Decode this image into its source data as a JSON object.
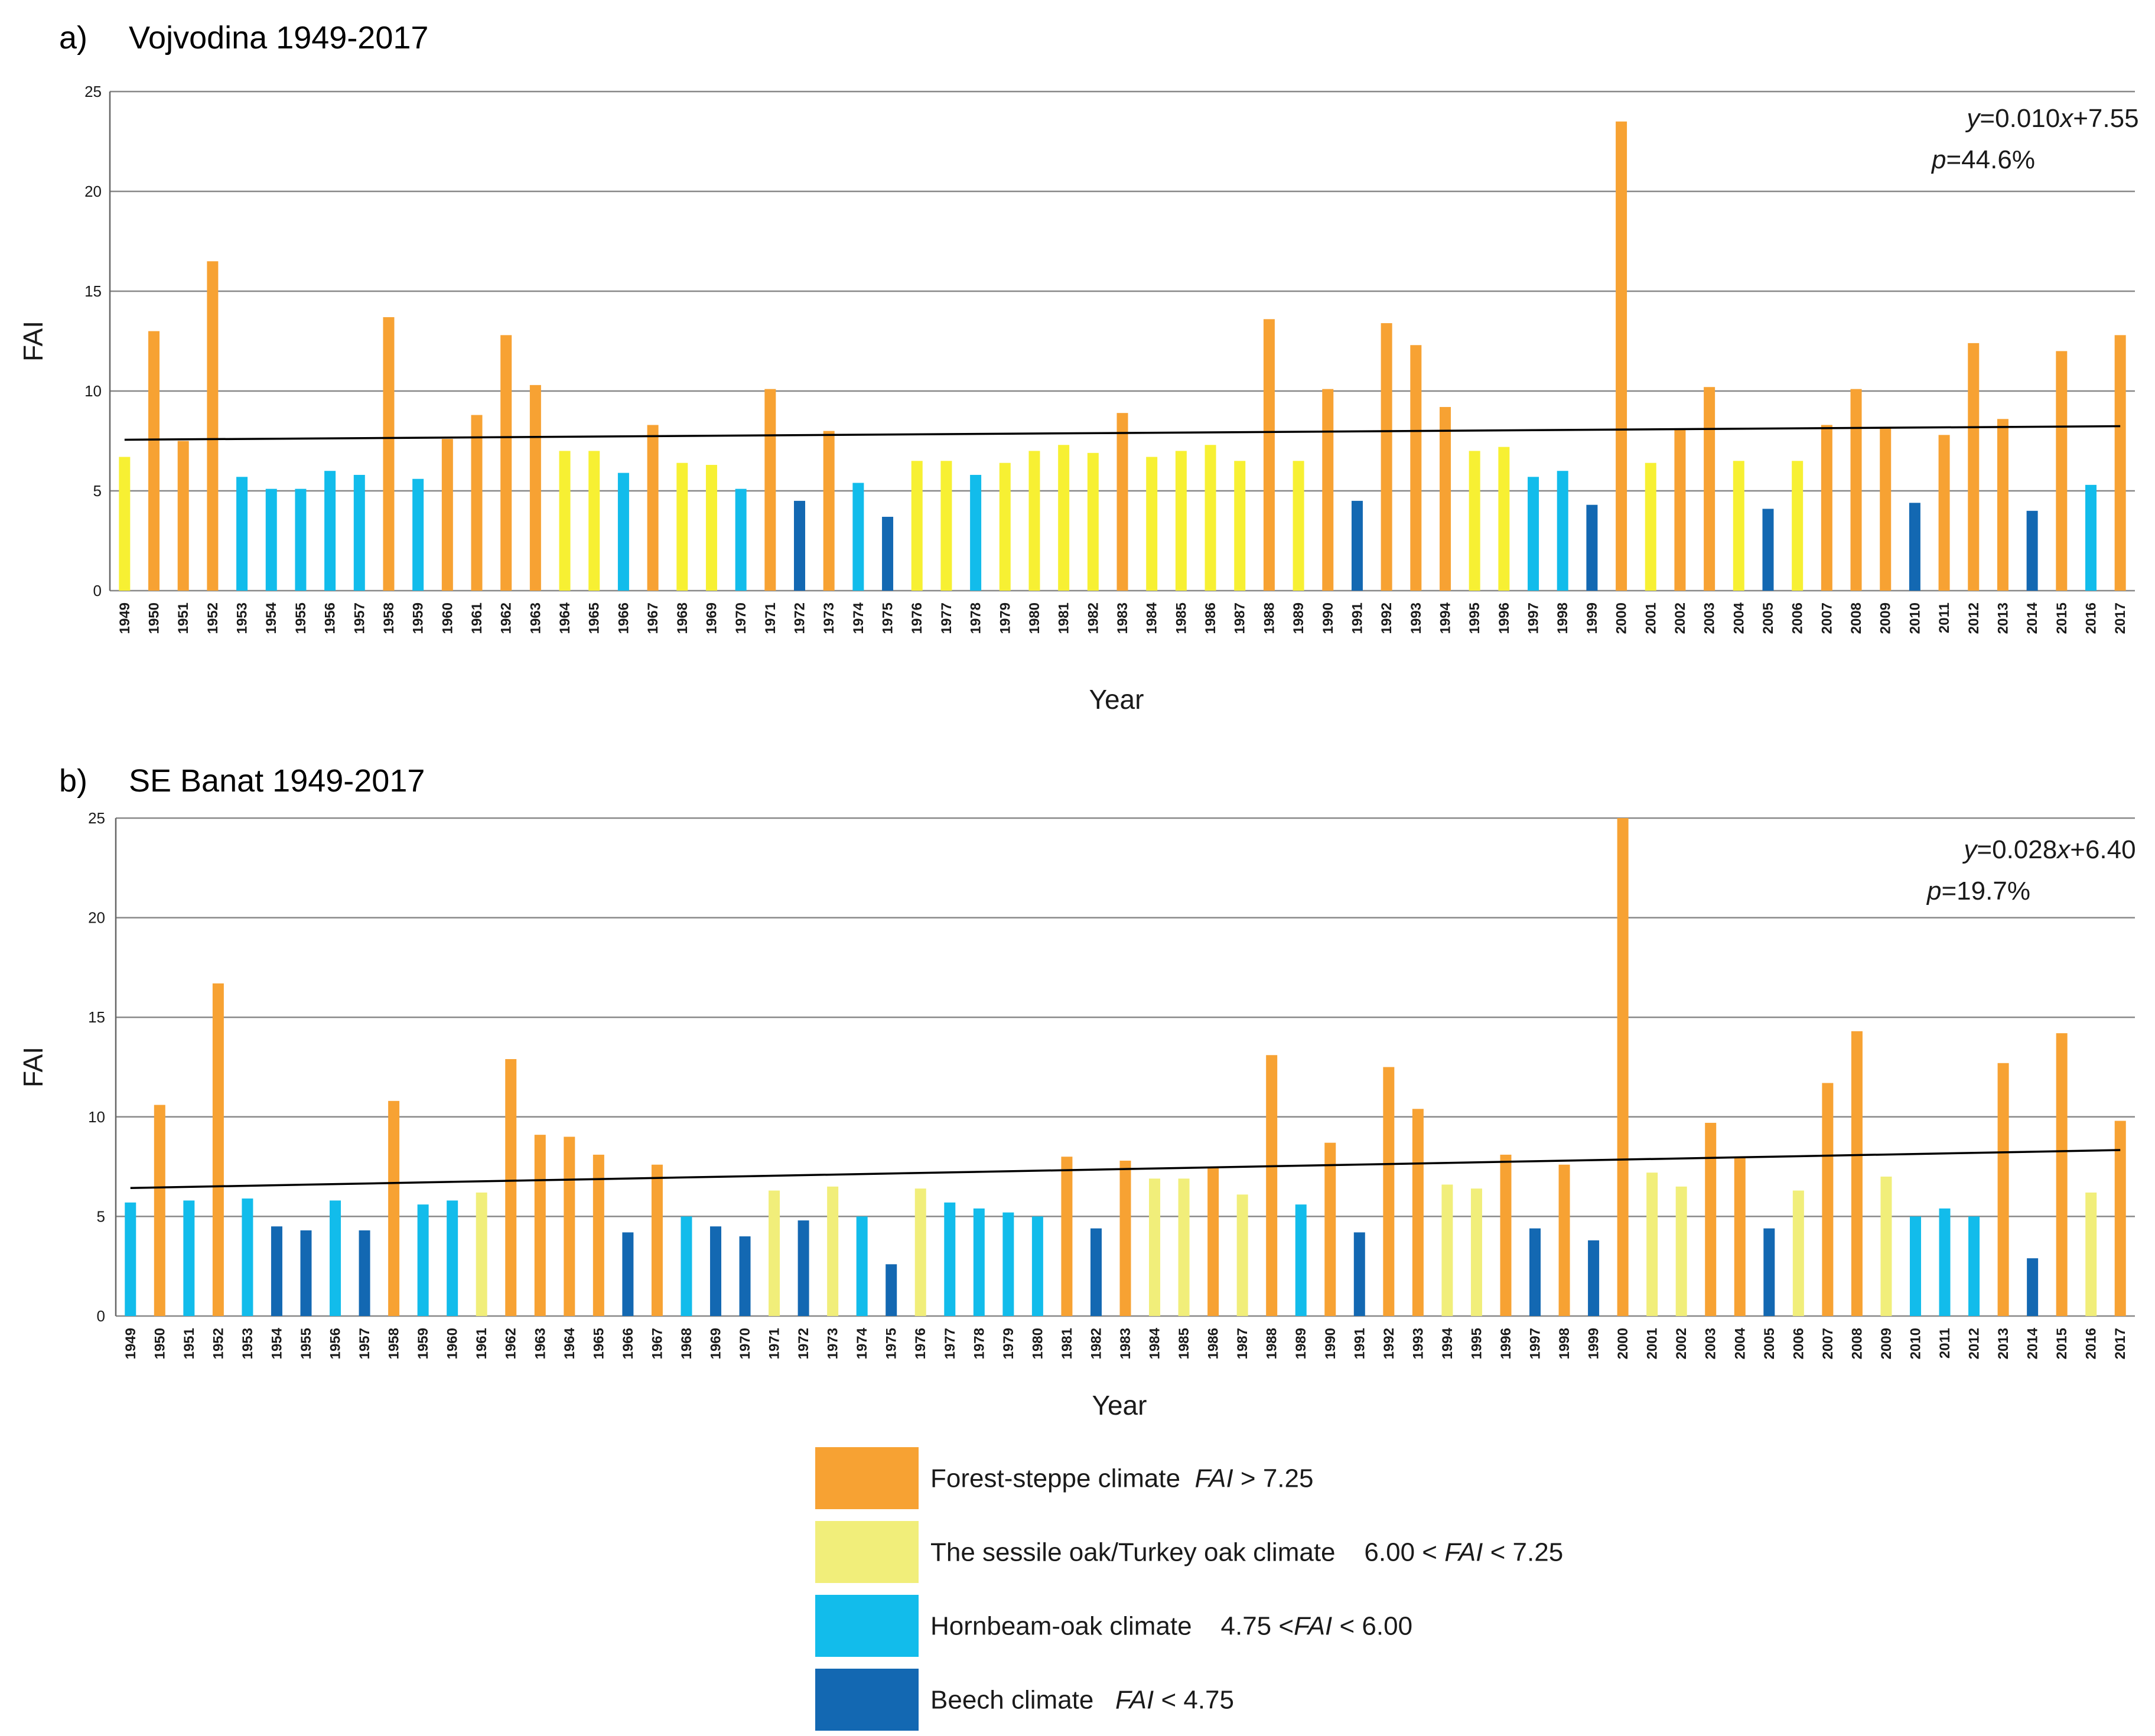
{
  "colors": {
    "forest_steppe": "#F7A233",
    "sessile_oak_a": "#F7F033",
    "sessile_oak_b": "#F1EE7A",
    "hornbeam_oak": "#12BCEB",
    "beech": "#1368B2",
    "grid": "#888888",
    "trend": "#000000"
  },
  "legend": [
    {
      "key": "forest_steppe",
      "text_html": "Forest-steppe climate&nbsp;&nbsp;<tspan font-style='italic'>FAI</tspan> &gt; 7.25",
      "text": "Forest-steppe climate FAI > 7.25"
    },
    {
      "key": "sessile_oak_b",
      "text_html": "The sessile oak/Turkey oak climate&nbsp;&nbsp;&nbsp;&nbsp;6.00 &lt; <tspan font-style='italic'>FAI</tspan> &lt; 7.25",
      "text": "The sessile oak/Turkey oak climate 6.00 < FAI < 7.25"
    },
    {
      "key": "hornbeam_oak",
      "text_html": "Hornbeam-oak climate&nbsp;&nbsp;&nbsp;&nbsp;4.75 &lt;<tspan font-style='italic'>FAI</tspan> &lt; 6.00",
      "text": "Hornbeam-oak climate 4.75 <FAI < 6.00"
    },
    {
      "key": "beech",
      "text_html": "Beech climate&nbsp;&nbsp;&nbsp;<tspan font-style='italic'>FAI</tspan> &lt; 4.75",
      "text": "Beech climate FAI < 4.75"
    }
  ],
  "chart_data": [
    {
      "type": "bar",
      "panel_label": "a)",
      "title": "Vojvodina 1949-2017",
      "xlabel": "Year",
      "ylabel": "FAI",
      "ylim": [
        0,
        25
      ],
      "yticks": [
        0,
        5,
        10,
        15,
        20,
        25
      ],
      "grid": true,
      "equation": "y=0.010x+7.55",
      "p_value": "p=44.6%",
      "trend": {
        "slope": 0.01,
        "intercept": 7.55
      },
      "categories": [
        "1949",
        "1950",
        "1951",
        "1952",
        "1953",
        "1954",
        "1955",
        "1956",
        "1957",
        "1958",
        "1959",
        "1960",
        "1961",
        "1962",
        "1963",
        "1964",
        "1965",
        "1966",
        "1967",
        "1968",
        "1969",
        "1970",
        "1971",
        "1972",
        "1973",
        "1974",
        "1975",
        "1976",
        "1977",
        "1978",
        "1979",
        "1980",
        "1981",
        "1982",
        "1983",
        "1984",
        "1985",
        "1986",
        "1987",
        "1988",
        "1989",
        "1990",
        "1991",
        "1992",
        "1993",
        "1994",
        "1995",
        "1996",
        "1997",
        "1998",
        "1999",
        "2000",
        "2001",
        "2002",
        "2003",
        "2004",
        "2005",
        "2006",
        "2007",
        "2008",
        "2009",
        "2010",
        "2011",
        "2012",
        "2013",
        "2014",
        "2015",
        "2016",
        "2017"
      ],
      "values": [
        6.7,
        13.0,
        7.5,
        16.5,
        5.7,
        5.1,
        5.1,
        6.0,
        5.8,
        13.7,
        5.6,
        7.6,
        8.8,
        12.8,
        10.3,
        7.0,
        7.0,
        5.9,
        8.3,
        6.4,
        6.3,
        5.1,
        10.1,
        4.5,
        8.0,
        5.4,
        3.7,
        6.5,
        6.5,
        5.8,
        6.4,
        7.0,
        7.3,
        6.9,
        8.9,
        6.7,
        7.0,
        7.3,
        6.5,
        13.6,
        6.5,
        10.1,
        4.5,
        13.4,
        12.3,
        9.2,
        7.0,
        7.2,
        5.7,
        6.0,
        4.3,
        23.5,
        6.4,
        8.1,
        10.2,
        6.5,
        4.1,
        6.5,
        8.3,
        10.1,
        8.2,
        4.4,
        7.8,
        12.4,
        8.6,
        4.0,
        12.0,
        5.3,
        12.8
      ],
      "classes": [
        "sessile_oak_a",
        "forest_steppe",
        "forest_steppe",
        "forest_steppe",
        "hornbeam_oak",
        "hornbeam_oak",
        "hornbeam_oak",
        "hornbeam_oak",
        "hornbeam_oak",
        "forest_steppe",
        "hornbeam_oak",
        "forest_steppe",
        "forest_steppe",
        "forest_steppe",
        "forest_steppe",
        "sessile_oak_a",
        "sessile_oak_a",
        "hornbeam_oak",
        "forest_steppe",
        "sessile_oak_a",
        "sessile_oak_a",
        "hornbeam_oak",
        "forest_steppe",
        "beech",
        "forest_steppe",
        "hornbeam_oak",
        "beech",
        "sessile_oak_a",
        "sessile_oak_a",
        "hornbeam_oak",
        "sessile_oak_a",
        "sessile_oak_a",
        "sessile_oak_a",
        "sessile_oak_a",
        "forest_steppe",
        "sessile_oak_a",
        "sessile_oak_a",
        "sessile_oak_a",
        "sessile_oak_a",
        "forest_steppe",
        "sessile_oak_a",
        "forest_steppe",
        "beech",
        "forest_steppe",
        "forest_steppe",
        "forest_steppe",
        "sessile_oak_a",
        "sessile_oak_a",
        "hornbeam_oak",
        "hornbeam_oak",
        "beech",
        "forest_steppe",
        "sessile_oak_a",
        "forest_steppe",
        "forest_steppe",
        "sessile_oak_a",
        "beech",
        "sessile_oak_a",
        "forest_steppe",
        "forest_steppe",
        "forest_steppe",
        "beech",
        "forest_steppe",
        "forest_steppe",
        "forest_steppe",
        "beech",
        "forest_steppe",
        "hornbeam_oak",
        "forest_steppe"
      ]
    },
    {
      "type": "bar",
      "panel_label": "b)",
      "title": "SE Banat 1949-2017",
      "xlabel": "Year",
      "ylabel": "FAI",
      "ylim": [
        0,
        25
      ],
      "yticks": [
        0,
        5,
        10,
        15,
        20,
        25
      ],
      "grid": true,
      "equation": "y=0.028x+6.40",
      "p_value": "p=19.7%",
      "trend": {
        "slope": 0.028,
        "intercept": 6.4
      },
      "categories": [
        "1949",
        "1950",
        "1951",
        "1952",
        "1953",
        "1954",
        "1955",
        "1956",
        "1957",
        "1958",
        "1959",
        "1960",
        "1961",
        "1962",
        "1963",
        "1964",
        "1965",
        "1966",
        "1967",
        "1968",
        "1969",
        "1970",
        "1971",
        "1972",
        "1973",
        "1974",
        "1975",
        "1976",
        "1977",
        "1978",
        "1979",
        "1980",
        "1981",
        "1982",
        "1983",
        "1984",
        "1985",
        "1986",
        "1987",
        "1988",
        "1989",
        "1990",
        "1991",
        "1992",
        "1993",
        "1994",
        "1995",
        "1996",
        "1997",
        "1998",
        "1999",
        "2000",
        "2001",
        "2002",
        "2003",
        "2004",
        "2005",
        "2006",
        "2007",
        "2008",
        "2009",
        "2010",
        "2011",
        "2012",
        "2013",
        "2014",
        "2015",
        "2016",
        "2017"
      ],
      "values": [
        5.7,
        10.6,
        5.8,
        16.7,
        5.9,
        4.5,
        4.3,
        5.8,
        4.3,
        10.8,
        5.6,
        5.8,
        6.2,
        12.9,
        9.1,
        9.0,
        8.1,
        4.2,
        7.6,
        5.0,
        4.5,
        4.0,
        6.3,
        4.8,
        6.5,
        5.0,
        2.6,
        6.4,
        5.7,
        5.4,
        5.2,
        5.0,
        8.0,
        4.4,
        7.8,
        6.9,
        6.9,
        7.5,
        6.1,
        13.1,
        5.6,
        8.7,
        4.2,
        12.5,
        10.4,
        6.6,
        6.4,
        8.1,
        4.4,
        7.6,
        3.8,
        25.0,
        7.2,
        6.5,
        9.7,
        8.0,
        4.4,
        6.3,
        11.7,
        14.3,
        7.0,
        5.0,
        5.4,
        5.0,
        12.7,
        2.9,
        14.2,
        6.2,
        9.8
      ],
      "classes": [
        "hornbeam_oak",
        "forest_steppe",
        "hornbeam_oak",
        "forest_steppe",
        "hornbeam_oak",
        "beech",
        "beech",
        "hornbeam_oak",
        "beech",
        "forest_steppe",
        "hornbeam_oak",
        "hornbeam_oak",
        "sessile_oak_b",
        "forest_steppe",
        "forest_steppe",
        "forest_steppe",
        "forest_steppe",
        "beech",
        "forest_steppe",
        "hornbeam_oak",
        "beech",
        "beech",
        "sessile_oak_b",
        "beech",
        "sessile_oak_b",
        "hornbeam_oak",
        "beech",
        "sessile_oak_b",
        "hornbeam_oak",
        "hornbeam_oak",
        "hornbeam_oak",
        "hornbeam_oak",
        "forest_steppe",
        "beech",
        "forest_steppe",
        "sessile_oak_b",
        "sessile_oak_b",
        "forest_steppe",
        "sessile_oak_b",
        "forest_steppe",
        "hornbeam_oak",
        "forest_steppe",
        "beech",
        "forest_steppe",
        "forest_steppe",
        "sessile_oak_b",
        "sessile_oak_b",
        "forest_steppe",
        "beech",
        "forest_steppe",
        "beech",
        "forest_steppe",
        "sessile_oak_b",
        "sessile_oak_b",
        "forest_steppe",
        "forest_steppe",
        "beech",
        "sessile_oak_b",
        "forest_steppe",
        "forest_steppe",
        "sessile_oak_b",
        "hornbeam_oak",
        "hornbeam_oak",
        "hornbeam_oak",
        "forest_steppe",
        "beech",
        "forest_steppe",
        "sessile_oak_b",
        "forest_steppe"
      ]
    }
  ]
}
